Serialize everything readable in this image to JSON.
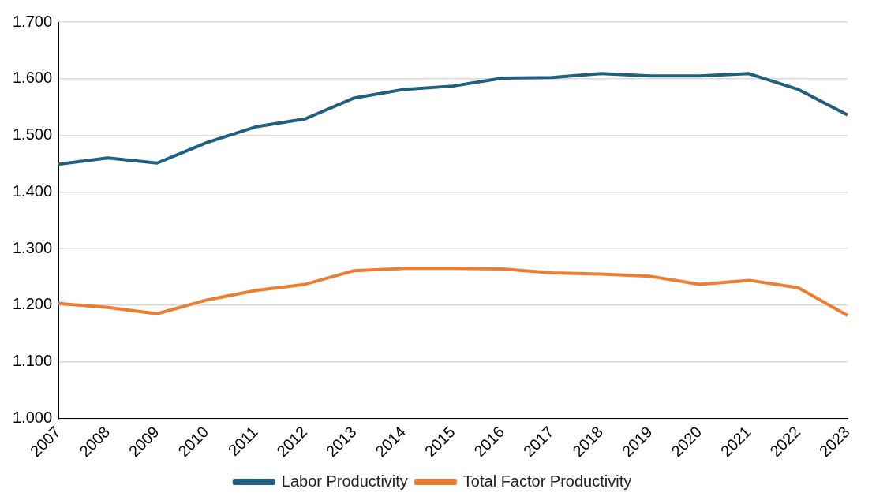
{
  "chart_data": {
    "type": "line",
    "categories": [
      "2007",
      "2008",
      "2009",
      "2010",
      "2011",
      "2012",
      "2013",
      "2014",
      "2015",
      "2016",
      "2017",
      "2018",
      "2019",
      "2020",
      "2021",
      "2022",
      "2023"
    ],
    "series": [
      {
        "name": "Labor Productivity",
        "color": "#1f5f7f",
        "values": [
          1.449,
          1.46,
          1.451,
          1.487,
          1.515,
          1.529,
          1.566,
          1.581,
          1.587,
          1.601,
          1.602,
          1.609,
          1.605,
          1.605,
          1.609,
          1.581,
          1.536
        ]
      },
      {
        "name": "Total Factor Productivity",
        "color": "#ed7d31",
        "values": [
          1.203,
          1.196,
          1.185,
          1.209,
          1.226,
          1.237,
          1.261,
          1.265,
          1.265,
          1.264,
          1.257,
          1.255,
          1.251,
          1.237,
          1.244,
          1.231,
          1.182
        ]
      }
    ],
    "ylim": [
      1,
      1.7
    ],
    "yticks": [
      {
        "value": 1,
        "label": "1.000"
      },
      {
        "value": 1.1,
        "label": "1.100"
      },
      {
        "value": 1.2,
        "label": "1.200"
      },
      {
        "value": 1.3,
        "label": "1.300"
      },
      {
        "value": 1.4,
        "label": "1.400"
      },
      {
        "value": 1.5,
        "label": "1.500"
      },
      {
        "value": 1.6,
        "label": "1.600"
      },
      {
        "value": 1.7,
        "label": "1.700"
      }
    ],
    "grid": "y",
    "legend": "bottom",
    "marker": "none",
    "line_style": "solid"
  }
}
